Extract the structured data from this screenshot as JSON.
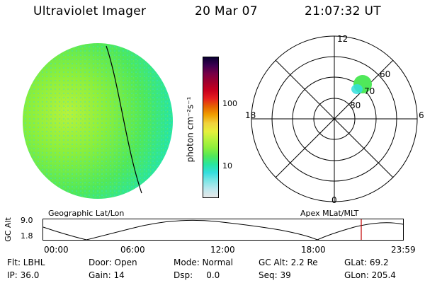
{
  "header": {
    "instrument": "Ultraviolet Imager",
    "date": "20 Mar 07",
    "time": "21:07:32 UT"
  },
  "colorbar": {
    "unit_label": "photon cm⁻²s⁻¹",
    "ticks": [
      "100",
      "10"
    ],
    "colors": [
      "#e8e8e8",
      "#bde8ee",
      "#7ee6e6",
      "#34dede",
      "#28e6a0",
      "#50e85a",
      "#8cef3c",
      "#b6f23c",
      "#e6f03c",
      "#f0d23c",
      "#f0a000",
      "#e66400",
      "#e61e1e",
      "#c8001e",
      "#a0002d",
      "#780046",
      "#3c0050",
      "#0a0032"
    ]
  },
  "polar": {
    "rings": [
      "80",
      "70",
      "60"
    ],
    "mlt": {
      "top": "12",
      "bottom": "0",
      "left": "18",
      "right": "6"
    }
  },
  "timeline": {
    "left_label": "Geographic Lat/Lon",
    "right_label": "Apex  MLat/MLT",
    "axis_label": "GC Alt",
    "y_ticks": [
      "9.0",
      "1.8"
    ],
    "x_ticks": [
      "00:00",
      "06:00",
      "12:00",
      "18:00",
      "23:59"
    ],
    "marker_color": "#c00000"
  },
  "status": {
    "row1": [
      "Flt: LBHL",
      "Door: Open",
      "Mode: Normal",
      "GC Alt: 2.2 Re",
      "GLat:  69.2"
    ],
    "row2": [
      "IP: 36.0",
      "Gain: 14",
      "Dsp:     0.0",
      "Seq: 39",
      "GLon: 205.4"
    ]
  }
}
